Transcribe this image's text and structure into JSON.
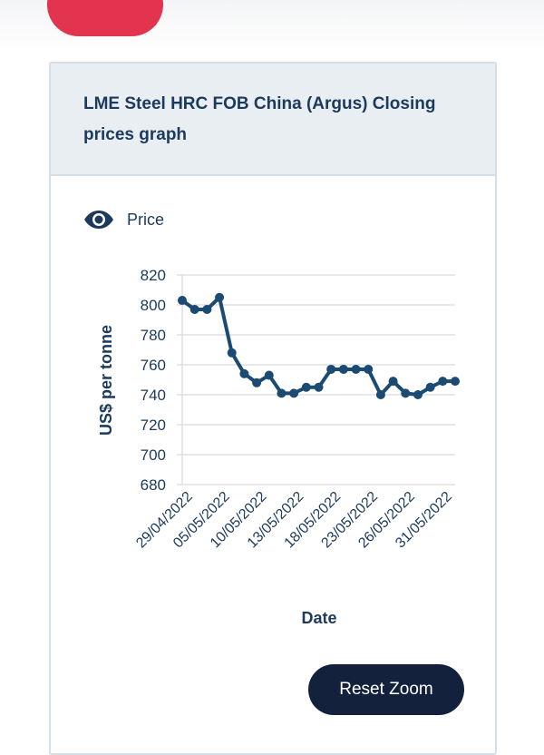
{
  "card": {
    "title": "LME Steel HRC FOB China (Argus) Closing prices graph",
    "reset_zoom_label": "Reset Zoom"
  },
  "legend": {
    "label": "Price",
    "icon": "eye-icon"
  },
  "colors": {
    "line": "#1b4a72",
    "header_bg": "#e9eef3",
    "button_bg": "#13213d",
    "red_pill": "#e2344f"
  },
  "chart_data": {
    "type": "line",
    "ylabel": "US$ per tonne",
    "xlabel": "Date",
    "ylim": [
      680,
      820
    ],
    "yticks": [
      680,
      700,
      720,
      740,
      760,
      780,
      800,
      820
    ],
    "xtick_labels": [
      "29/04/2022",
      "05/05/2022",
      "10/05/2022",
      "13/05/2022",
      "18/05/2022",
      "23/05/2022",
      "26/05/2022",
      "31/05/2022"
    ],
    "grid": true,
    "series": [
      {
        "name": "Price",
        "values": [
          803,
          797,
          797,
          805,
          768,
          754,
          748,
          753,
          741,
          741,
          745,
          745,
          757,
          757,
          757,
          757,
          740,
          749,
          741,
          740,
          745,
          749,
          749
        ]
      }
    ]
  }
}
